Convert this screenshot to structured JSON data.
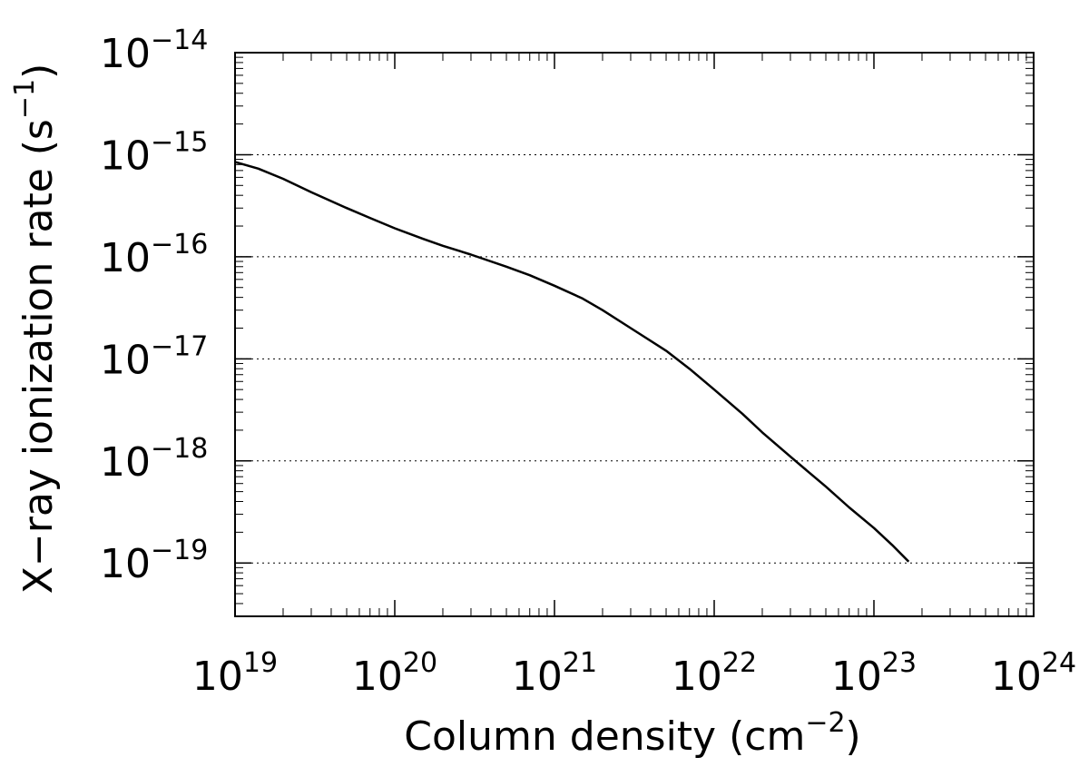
{
  "chart_data": {
    "type": "line",
    "xlabel": "Column density (cm⁻²)",
    "xlabel_main": "Column density (cm",
    "xlabel_exp": "−2",
    "xlabel_close": ")",
    "ylabel": "X−ray ionization rate (s⁻¹)",
    "ylabel_main": "X−ray ionization rate (s",
    "ylabel_exp": "−1",
    "ylabel_close": ")",
    "xscale": "log",
    "yscale": "log",
    "xlim": [
      1e+19,
      1e+24
    ],
    "ylim": [
      3e-20,
      1e-14
    ],
    "grid": "horizontal dotted lines at major y ticks",
    "x_ticks": [
      {
        "base": "10",
        "exp": "19",
        "value": 1e+19
      },
      {
        "base": "10",
        "exp": "20",
        "value": 1e+20
      },
      {
        "base": "10",
        "exp": "21",
        "value": 1e+21
      },
      {
        "base": "10",
        "exp": "22",
        "value": 1e+22
      },
      {
        "base": "10",
        "exp": "23",
        "value": 1e+23
      },
      {
        "base": "10",
        "exp": "24",
        "value": 1e+24
      }
    ],
    "y_ticks": [
      {
        "base": "10",
        "exp": "−19",
        "value": 1e-19
      },
      {
        "base": "10",
        "exp": "−18",
        "value": 1e-18
      },
      {
        "base": "10",
        "exp": "−17",
        "value": 1e-17
      },
      {
        "base": "10",
        "exp": "−16",
        "value": 1e-16
      },
      {
        "base": "10",
        "exp": "−15",
        "value": 1e-15
      },
      {
        "base": "10",
        "exp": "−14",
        "value": 1e-14
      }
    ],
    "series": [
      {
        "color": "#000000",
        "x": [
          1e+19,
          1.4e+19,
          2e+19,
          3e+19,
          5e+19,
          7e+19,
          1e+20,
          1.5e+20,
          2e+20,
          3e+20,
          5e+20,
          7e+20,
          1e+21,
          1.5e+21,
          2e+21,
          3e+21,
          5e+21,
          7e+21,
          1e+22,
          1.5e+22,
          2e+22,
          3e+22,
          5e+22,
          7e+22,
          1e+23,
          1.3e+23,
          1.65e+23
        ],
        "y": [
          8.5e-16,
          7.3e-16,
          5.8e-16,
          4.3e-16,
          3e-16,
          2.4e-16,
          1.9e-16,
          1.5e-16,
          1.28e-16,
          1.05e-16,
          8e-17,
          6.6e-17,
          5.2e-17,
          3.9e-17,
          3e-17,
          2e-17,
          1.2e-17,
          8e-18,
          5e-18,
          2.9e-18,
          1.9e-18,
          1.1e-18,
          5.6e-19,
          3.5e-19,
          2.2e-19,
          1.5e-19,
          1.03e-19
        ]
      }
    ]
  }
}
